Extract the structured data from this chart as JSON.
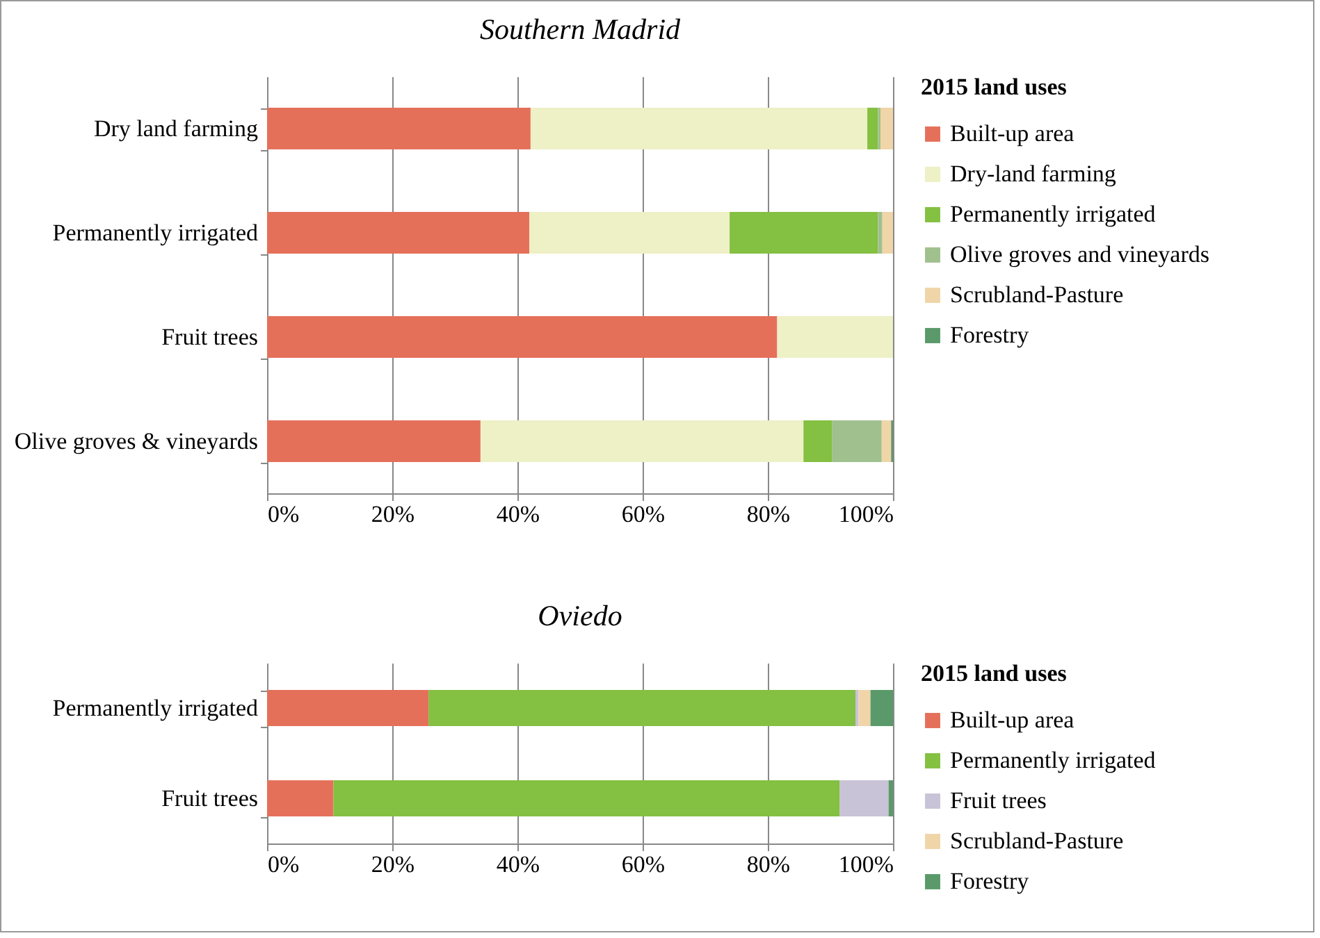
{
  "chart_data": [
    {
      "type": "bar",
      "title": "Southern Madrid",
      "orientation": "horizontal",
      "stacked": true,
      "grid": "x",
      "legend": "right",
      "legend_title": "2015 land uses",
      "categories": [
        "Dry land farming",
        "Permanently irrigated",
        "Fruit trees",
        "Olive groves & vineyards"
      ],
      "xlim": [
        0,
        100
      ],
      "xticks": [
        {
          "value": 0,
          "label": "0%"
        },
        {
          "value": 20,
          "label": "20%"
        },
        {
          "value": 40,
          "label": "40%"
        },
        {
          "value": 60,
          "label": "60%"
        },
        {
          "value": 80,
          "label": "80%"
        },
        {
          "value": 100,
          "label": "100%"
        }
      ],
      "series": [
        {
          "name": "Built-up area",
          "color": "#e5705a",
          "values": [
            42.1,
            41.9,
            81.5,
            34.1
          ]
        },
        {
          "name": "Dry-land farming",
          "color": "#eef0c6",
          "values": [
            53.8,
            32.0,
            18.5,
            51.6
          ]
        },
        {
          "name": "Permanently irrigated",
          "color": "#84c041",
          "values": [
            1.7,
            23.7,
            0,
            4.6
          ]
        },
        {
          "name": "Olive groves and vineyards",
          "color": "#a0c08e",
          "values": [
            0.4,
            0.7,
            0,
            7.9
          ]
        },
        {
          "name": "Scrubland-Pasture",
          "color": "#f0d5a8",
          "values": [
            2.0,
            1.7,
            0,
            1.5
          ]
        },
        {
          "name": "Forestry",
          "color": "#5a9a6a",
          "values": [
            0,
            0,
            0,
            0.3
          ]
        }
      ]
    },
    {
      "type": "bar",
      "title": "Oviedo",
      "orientation": "horizontal",
      "stacked": true,
      "grid": "x",
      "legend": "right",
      "legend_title": "2015 land uses",
      "categories": [
        "Permanently irrigated",
        "Fruit trees"
      ],
      "xlim": [
        0,
        100
      ],
      "xticks": [
        {
          "value": 0,
          "label": "0%"
        },
        {
          "value": 20,
          "label": "20%"
        },
        {
          "value": 40,
          "label": "40%"
        },
        {
          "value": 60,
          "label": "60%"
        },
        {
          "value": 80,
          "label": "80%"
        },
        {
          "value": 100,
          "label": "100%"
        }
      ],
      "series": [
        {
          "name": "Built-up area",
          "color": "#e5705a",
          "values": [
            25.8,
            10.6
          ]
        },
        {
          "name": "Permanently irrigated",
          "color": "#84c041",
          "values": [
            68.2,
            80.9
          ]
        },
        {
          "name": "Fruit trees",
          "color": "#c8c3d6",
          "values": [
            0.5,
            7.8
          ]
        },
        {
          "name": "Scrubland-Pasture",
          "color": "#f0d5a8",
          "values": [
            1.9,
            0
          ]
        },
        {
          "name": "Forestry",
          "color": "#5a9a6a",
          "values": [
            3.6,
            0.7
          ]
        }
      ]
    }
  ]
}
